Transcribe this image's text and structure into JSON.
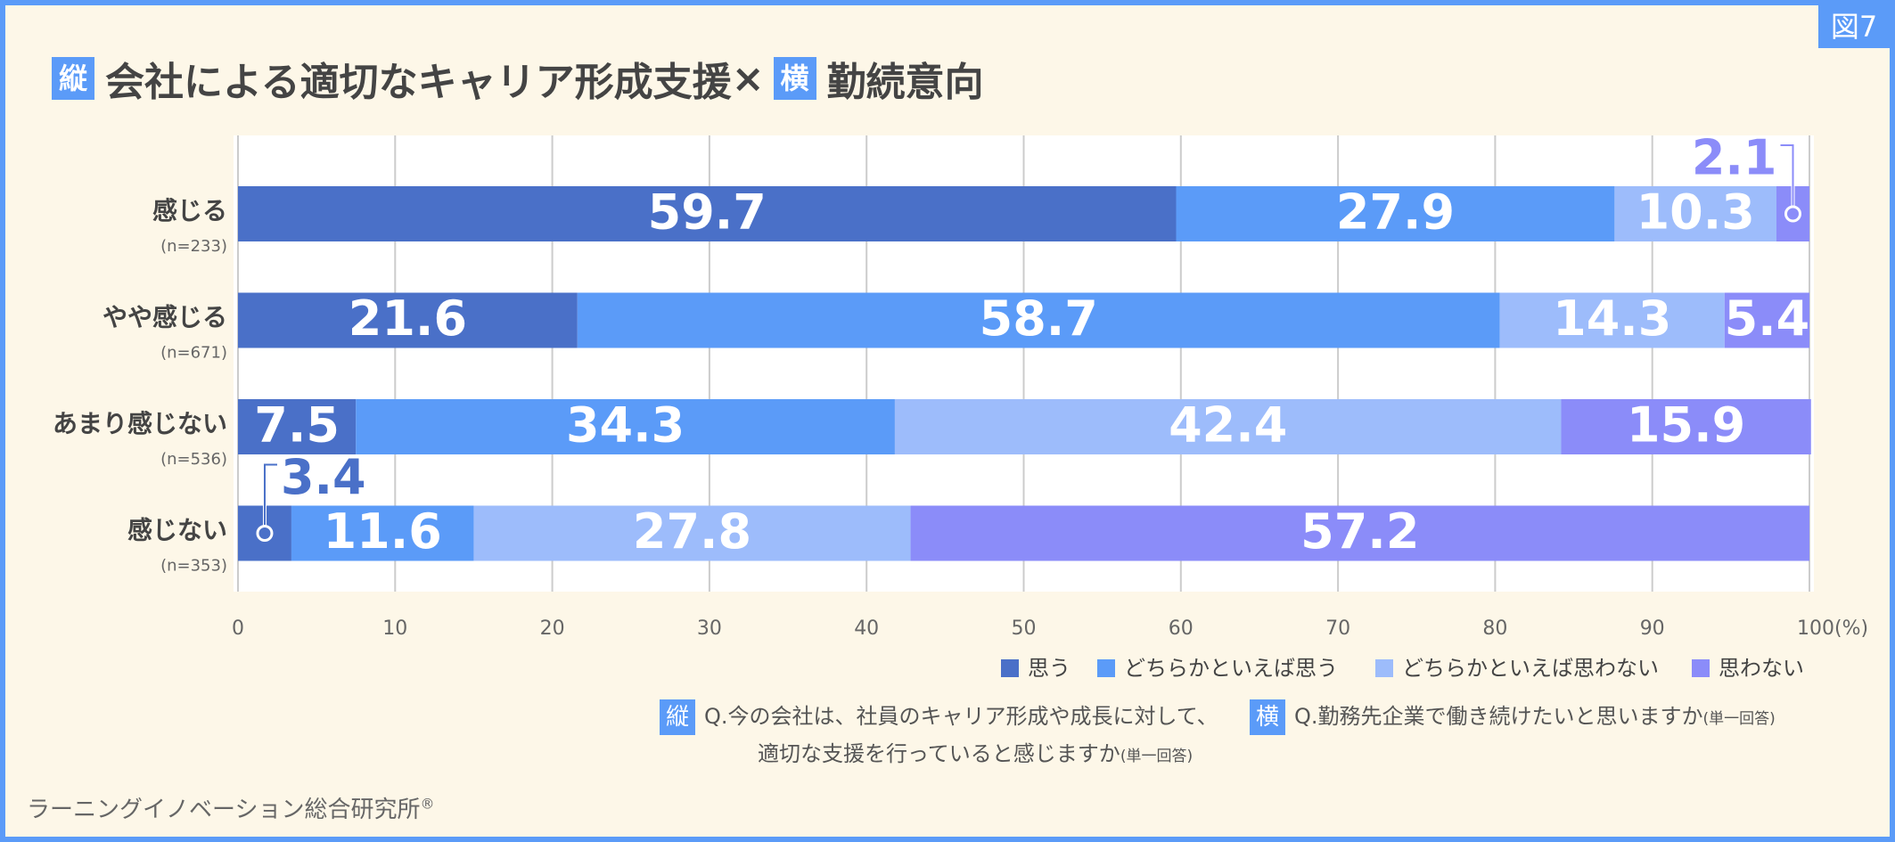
{
  "chart_data": {
    "type": "bar",
    "orientation": "horizontal",
    "stacked": true,
    "figure_label": "図7",
    "title": {
      "vertical_badge": "縦",
      "vertical": "会社による適切なキャリア形成支援",
      "cross": "×",
      "horizontal_badge": "横",
      "horizontal": "勤続意向"
    },
    "categories": [
      "感じる",
      "やや感じる",
      "あまり感じない",
      "感じない"
    ],
    "category_notes": [
      "(n=233)",
      "(n=671)",
      "(n=536)",
      "(n=353)"
    ],
    "series": [
      {
        "name": "思う",
        "color": "#4a70c8",
        "values": [
          59.7,
          21.6,
          7.5,
          3.4
        ]
      },
      {
        "name": "どちらかといえば思う",
        "color": "#5b9bf8",
        "values": [
          27.9,
          58.7,
          34.3,
          11.6
        ]
      },
      {
        "name": "どちらかといえば思わない",
        "color": "#9dbcfb",
        "values": [
          10.3,
          14.3,
          42.4,
          27.8
        ]
      },
      {
        "name": "思わない",
        "color": "#8b8cf9",
        "values": [
          2.1,
          5.4,
          15.9,
          57.2
        ]
      }
    ],
    "xlim": [
      0,
      100
    ],
    "xticks": [
      0,
      10,
      20,
      30,
      40,
      50,
      60,
      70,
      80,
      90,
      {
        "value": 100,
        "label": "100(%)"
      }
    ],
    "grid": true,
    "notes": {
      "vertical_badge": "縦",
      "vertical_line1": "Q.今の会社は、社員のキャリア形成や成長に対して、",
      "vertical_line2": "適切な支援を行っていると感じますか",
      "vertical_answer": "(単一回答)",
      "horizontal_badge": "横",
      "horizontal": "Q.勤務先企業で働き続けたいと思いますか",
      "horizontal_answer": "(単一回答)"
    },
    "source": "ラーニングイノベーション総合研究所",
    "source_mark": "®"
  }
}
